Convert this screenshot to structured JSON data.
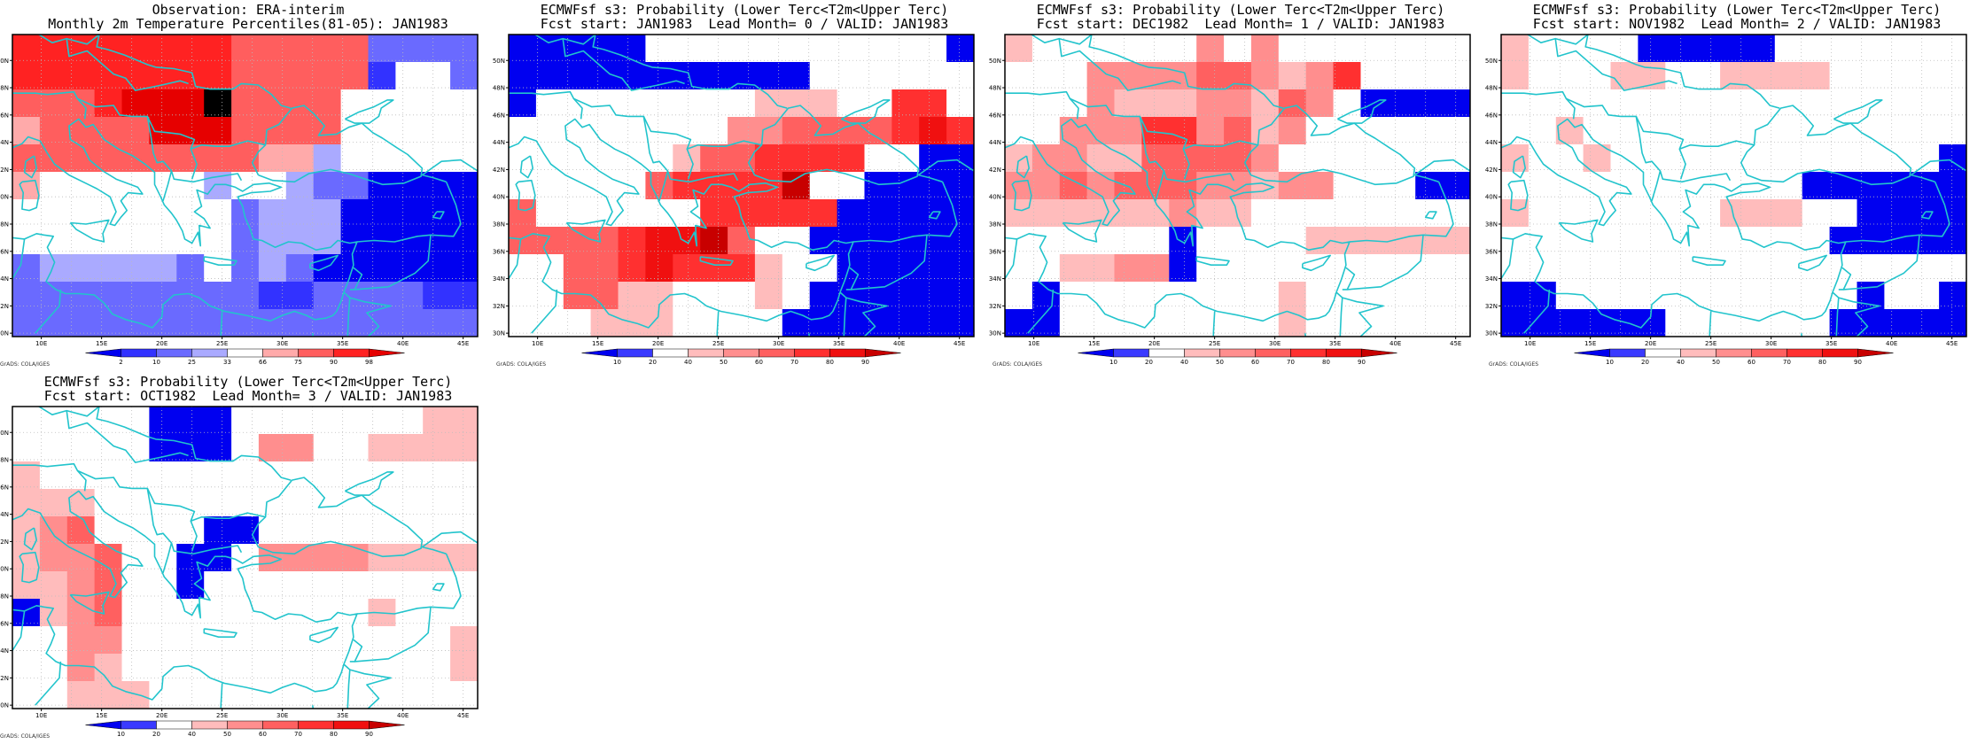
{
  "colors": {
    "coast": "#22c4cc",
    "grid": "#bbbbbb",
    "frame": "#000000"
  },
  "legend_obs": {
    "labels": [
      "2",
      "10",
      "25",
      "33",
      "66",
      "75",
      "90",
      "98"
    ],
    "colors": [
      "#0000f0",
      "#3232ff",
      "#6a6aff",
      "#aaaaff",
      "#ffffff",
      "#ffaaaa",
      "#ff5e5e",
      "#ff2222",
      "#e60000"
    ]
  },
  "legend_fc": {
    "labels": [
      "10",
      "20",
      "40",
      "50",
      "60",
      "70",
      "80",
      "90"
    ],
    "colors": [
      "#0000f0",
      "#3a3aff",
      "#ffffff",
      "#ffbcbc",
      "#ff8e8e",
      "#ff6060",
      "#ff3030",
      "#f01010",
      "#c80000"
    ]
  },
  "axes": {
    "lon_labels": [
      "10E",
      "15E",
      "20E",
      "25E",
      "30E",
      "35E",
      "40E",
      "45E"
    ],
    "lat_labels": [
      "30N",
      "32N",
      "34N",
      "36N",
      "38N",
      "40N",
      "42N",
      "44N",
      "46N",
      "48N",
      "50N"
    ]
  },
  "credit": "GrADS: COLA/IGES",
  "panels": [
    {
      "id": "obs",
      "title1": "Observation: ERA-interim",
      "title2": "Monthly 2m Temperature Percentiles(81-05): JAN1983",
      "legend": "obs",
      "rows": [
        "77777777666662222",
        "77777777666661442",
        "66678889666644444",
        "56666888666644444",
        "66666666655344444",
        "54444443443220000",
        "44444444233300000",
        "44444444233300000",
        "23333324232000000",
        "22222222211222211",
        "22222222222222222"
      ]
    },
    {
      "id": "lead0",
      "title1": "ECMWFsf s3: Probability (Lower Terc<T2m<Upper Terc)",
      "title2": "Fcst start: JAN1983  Lead Month= 0 / VALID: JAN1983",
      "legend": "fc",
      "rows": [
        "00000222222222220",
        "00000000000222222",
        "02222222233322662",
        "22222222445555676",
        "22222235566662200",
        "22222566668220000",
        "52222226666600000",
        "55556778522000000",
        "22556766632200000",
        "22553322232000000",
        "22233322220000000"
      ]
    },
    {
      "id": "lead1",
      "title1": "ECMWFsf s3: Probability (Lower Terc<T2m<Upper Terc)",
      "title2": "Fcst start: DEC1982  Lead Month= 1 / VALID: JAN1983",
      "legend": "fc",
      "rows": [
        "32222224242222222",
        "22244445543462222",
        "22243334435420000",
        "22444664534222222",
        "34433555542222222",
        "44545554434422200",
        "33333343322222222",
        "22222202222333333",
        "22334402222222222",
        "20222222223222222",
        "00222222223222222"
      ]
    },
    {
      "id": "lead2",
      "title1": "ECMWFsf s3: Probability (Lower Terc<T2m<Upper Terc)",
      "title2": "Fcst start: NOV1982  Lead Month= 2 / VALID: JAN1983",
      "legend": "fc",
      "rows": [
        "32222000002222222",
        "32223322333322222",
        "22222222222222222",
        "22322222222222222",
        "32232222222222220",
        "22222222222000000",
        "32222222333220000",
        "22222222222200000",
        "22222222222222222",
        "00222222222220220",
        "00000022222200000"
      ]
    },
    {
      "id": "lead3",
      "title1": "ECMWFsf s3: Probability (Lower Terc<T2m<Upper Terc)",
      "title2": "Fcst start: OCT1982  Lead Month= 3 / VALID: JAN1983",
      "legend": "fc",
      "rows": [
        "22222000222222233",
        "22222000244223333",
        "32222222222222222",
        "33322222222222222",
        "34522220022222222",
        "34452200244443333",
        "33452202222222222",
        "03452222222223222",
        "22442222222222223",
        "22432222222222223",
        "22333222222222222"
      ]
    }
  ]
}
